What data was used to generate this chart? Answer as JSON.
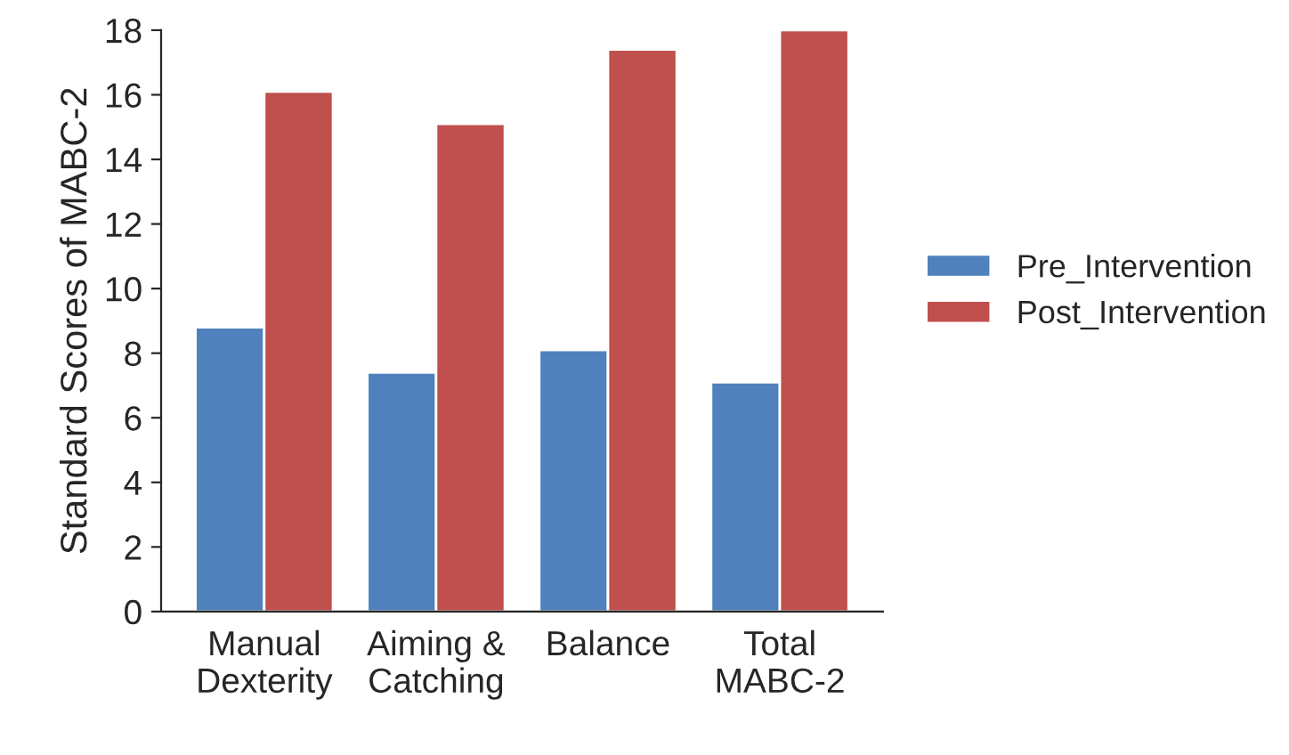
{
  "chart_data": {
    "type": "bar",
    "ylabel": "Standard Scores of MABC-2",
    "categories": [
      "Manual\nDexterity",
      "Aiming &\nCatching",
      "Balance",
      "Total\nMABC-2"
    ],
    "series": [
      {
        "name": "Pre_Intervention",
        "color": "#4f81bd",
        "values": [
          8.8,
          7.4,
          8.1,
          7.1
        ]
      },
      {
        "name": "Post_Intervention",
        "color": "#c0504d",
        "values": [
          16.1,
          15.1,
          17.4,
          18
        ]
      }
    ],
    "ylim": [
      0,
      18
    ],
    "yticks": [
      0,
      2,
      4,
      6,
      8,
      10,
      12,
      14,
      16,
      18
    ],
    "grid": false,
    "legend": "right"
  }
}
